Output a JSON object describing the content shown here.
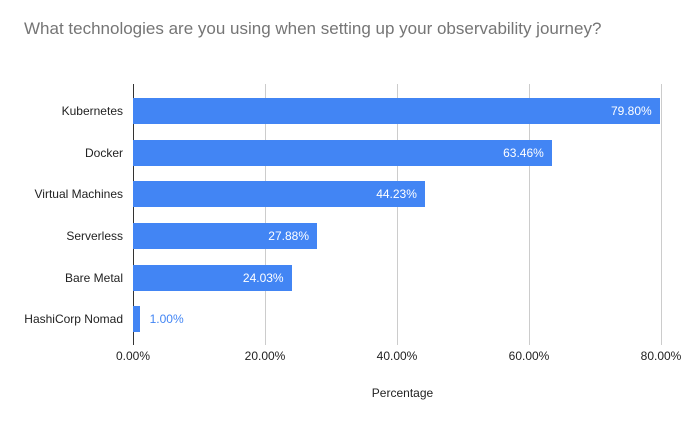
{
  "chart_data": {
    "type": "bar",
    "orientation": "horizontal",
    "title": "What technologies are you using when setting up your observability journey?",
    "categories": [
      "Kubernetes",
      "Docker",
      "Virtual Machines",
      "Serverless",
      "Bare Metal",
      "HashiCorp Nomad"
    ],
    "values": [
      79.8,
      63.46,
      44.23,
      27.88,
      24.03,
      1.0
    ],
    "value_labels": [
      "79.80%",
      "63.46%",
      "44.23%",
      "27.88%",
      "24.03%",
      "1.00%"
    ],
    "xlabel": "Percentage",
    "ylabel": "",
    "xlim": [
      0,
      81.7
    ],
    "x_ticks": [
      0,
      20,
      40,
      60,
      80
    ],
    "x_tick_labels": [
      "0.00%",
      "20.00%",
      "40.00%",
      "60.00%",
      "80.00%"
    ],
    "grid": true,
    "legend": "none"
  },
  "colors": {
    "bar": "#4285F4",
    "title_text": "#757575",
    "label_text": "#222222",
    "value_inside": "#ffffff",
    "grid": "#cccccc",
    "axis": "#333333",
    "background": "#ffffff"
  }
}
